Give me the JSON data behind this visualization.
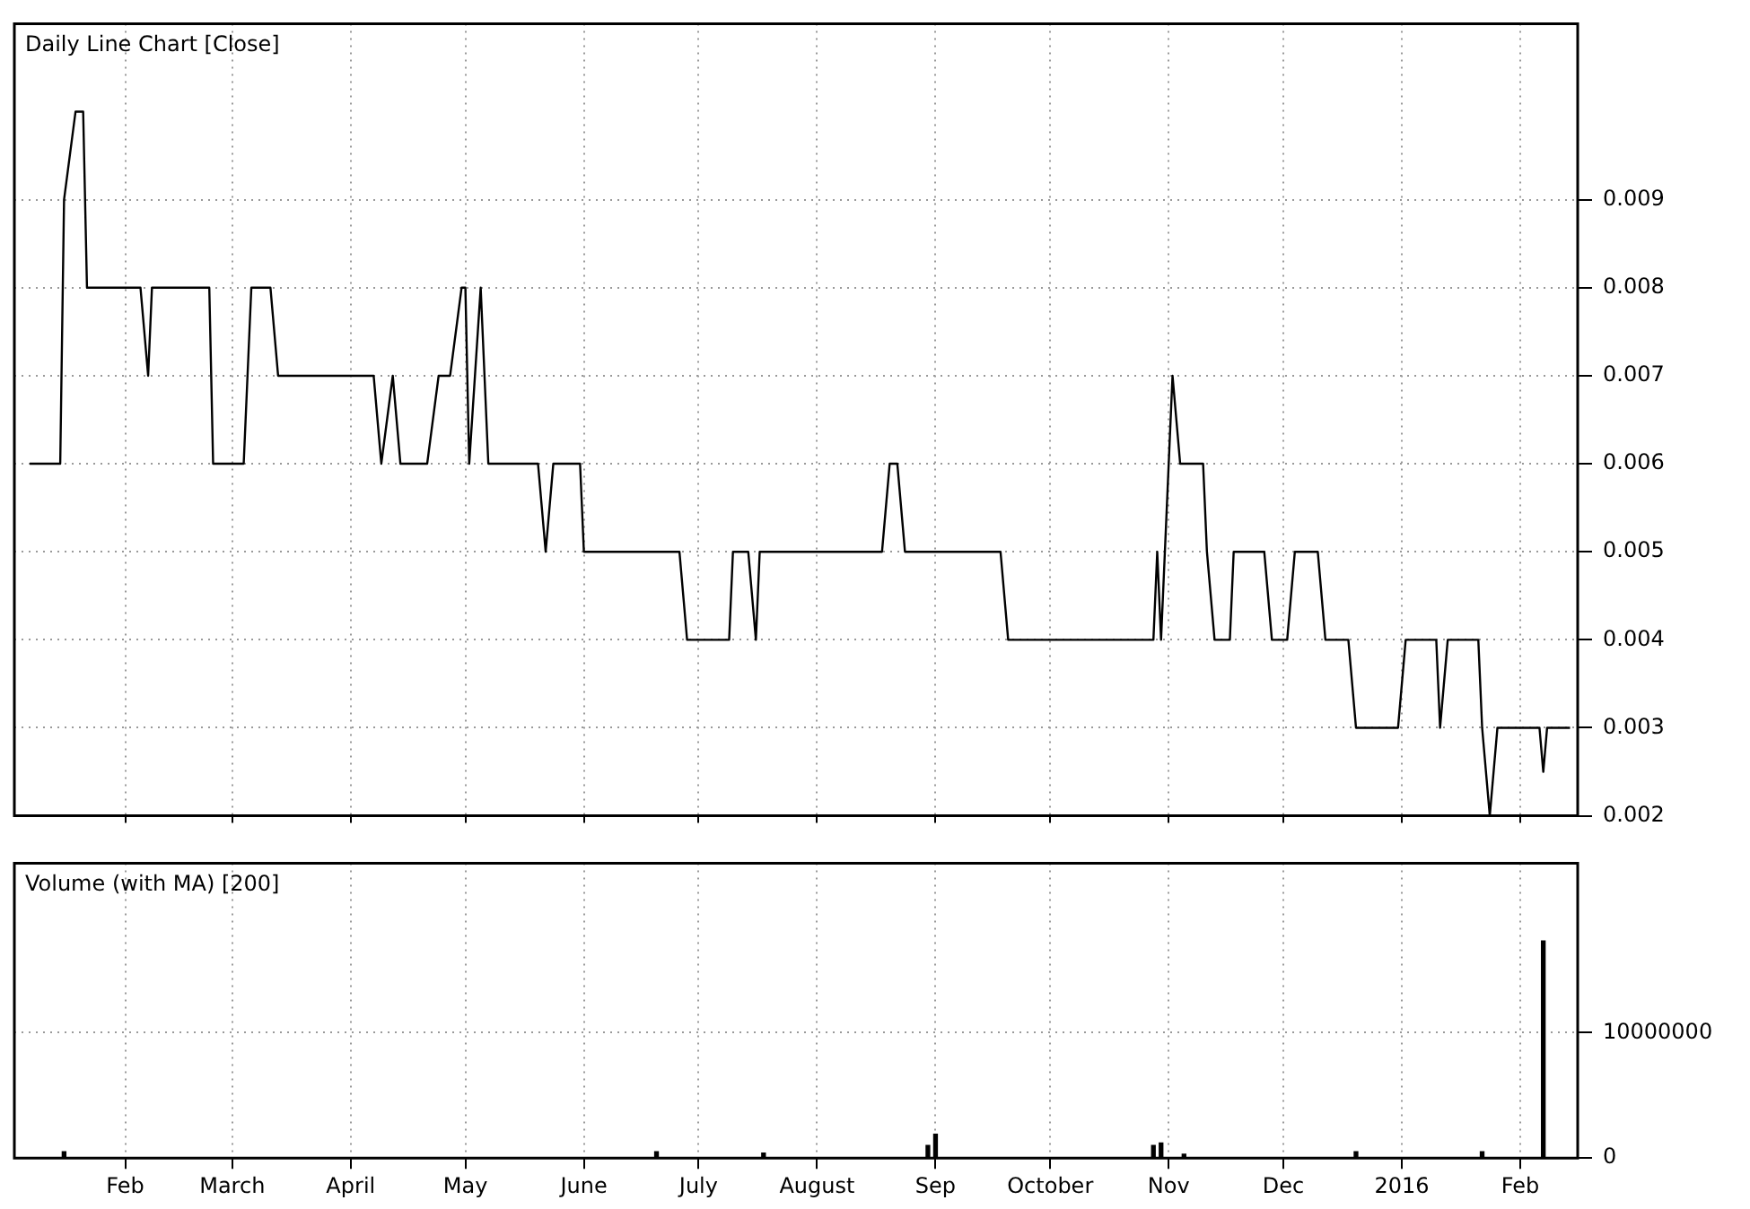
{
  "chart_data": [
    {
      "type": "line",
      "title": "Daily Line Chart [Close]",
      "color": "#000000",
      "x": [
        "2015-01-07",
        "2015-01-15",
        "2015-01-16",
        "2015-01-19",
        "2015-01-21",
        "2015-01-22",
        "2015-02-05",
        "2015-02-07",
        "2015-02-08",
        "2015-02-23",
        "2015-02-24",
        "2015-03-04",
        "2015-03-06",
        "2015-03-11",
        "2015-03-13",
        "2015-04-07",
        "2015-04-09",
        "2015-04-12",
        "2015-04-14",
        "2015-04-21",
        "2015-04-24",
        "2015-04-27",
        "2015-04-30",
        "2015-05-01",
        "2015-05-02",
        "2015-05-05",
        "2015-05-07",
        "2015-05-20",
        "2015-05-22",
        "2015-05-24",
        "2015-05-31",
        "2015-06-01",
        "2015-06-26",
        "2015-06-28",
        "2015-07-09",
        "2015-07-10",
        "2015-07-14",
        "2015-07-16",
        "2015-07-17",
        "2015-08-18",
        "2015-08-20",
        "2015-08-22",
        "2015-08-24",
        "2015-09-18",
        "2015-09-20",
        "2015-10-28",
        "2015-10-29",
        "2015-10-30",
        "2015-10-31",
        "2015-11-02",
        "2015-11-04",
        "2015-11-10",
        "2015-11-11",
        "2015-11-13",
        "2015-11-17",
        "2015-11-18",
        "2015-11-26",
        "2015-11-28",
        "2015-12-02",
        "2015-12-04",
        "2015-12-10",
        "2015-12-12",
        "2015-12-18",
        "2015-12-20",
        "2015-12-31",
        "2016-01-02",
        "2016-01-10",
        "2016-01-11",
        "2016-01-13",
        "2016-01-21",
        "2016-01-22",
        "2016-01-24",
        "2016-01-26",
        "2016-02-06",
        "2016-02-07",
        "2016-02-08",
        "2016-02-14"
      ],
      "values": [
        0.006,
        0.006,
        0.009,
        0.01,
        0.01,
        0.008,
        0.008,
        0.007,
        0.008,
        0.008,
        0.006,
        0.006,
        0.008,
        0.008,
        0.007,
        0.007,
        0.006,
        0.007,
        0.006,
        0.006,
        0.007,
        0.007,
        0.008,
        0.008,
        0.006,
        0.008,
        0.006,
        0.006,
        0.005,
        0.006,
        0.006,
        0.005,
        0.005,
        0.004,
        0.004,
        0.005,
        0.005,
        0.004,
        0.005,
        0.005,
        0.006,
        0.006,
        0.005,
        0.005,
        0.004,
        0.004,
        0.005,
        0.004,
        0.005,
        0.007,
        0.006,
        0.006,
        0.005,
        0.004,
        0.004,
        0.005,
        0.005,
        0.004,
        0.004,
        0.005,
        0.005,
        0.004,
        0.004,
        0.003,
        0.003,
        0.004,
        0.004,
        0.003,
        0.004,
        0.004,
        0.003,
        0.002,
        0.003,
        0.003,
        0.0025,
        0.003,
        0.003
      ],
      "xlim": [
        "2015-01-03",
        "2016-02-16"
      ],
      "xticks": [
        {
          "value": "2015-02-01",
          "label": null
        },
        {
          "value": "2015-03-01",
          "label": null
        },
        {
          "value": "2015-04-01",
          "label": null
        },
        {
          "value": "2015-05-01",
          "label": null
        },
        {
          "value": "2015-06-01",
          "label": null
        },
        {
          "value": "2015-07-01",
          "label": null
        },
        {
          "value": "2015-08-01",
          "label": null
        },
        {
          "value": "2015-09-01",
          "label": null
        },
        {
          "value": "2015-10-01",
          "label": null
        },
        {
          "value": "2015-11-01",
          "label": null
        },
        {
          "value": "2015-12-01",
          "label": null
        },
        {
          "value": "2016-01-01",
          "label": null
        },
        {
          "value": "2016-02-01",
          "label": null
        }
      ],
      "ylim": [
        0.002,
        0.011
      ],
      "yticks": [
        0.002,
        0.003,
        0.004,
        0.005,
        0.006,
        0.007,
        0.008,
        0.009
      ],
      "grid": true,
      "tick_labels": "y"
    },
    {
      "type": "bar",
      "title": "Volume (with MA) [200]",
      "color": "#000000",
      "x": [
        "2015-01-16",
        "2015-06-20",
        "2015-07-18",
        "2015-08-30",
        "2015-09-01",
        "2015-10-28",
        "2015-10-30",
        "2015-11-05",
        "2015-12-20",
        "2016-01-22",
        "2016-02-07"
      ],
      "values": [
        500000,
        500000,
        400000,
        1000000,
        1900000,
        1000000,
        1200000,
        300000,
        500000,
        500000,
        17300000
      ],
      "xlim": [
        "2015-01-03",
        "2016-02-16"
      ],
      "xticks": [
        {
          "value": "2015-02-01",
          "label": "Feb"
        },
        {
          "value": "2015-03-01",
          "label": "March"
        },
        {
          "value": "2015-04-01",
          "label": "April"
        },
        {
          "value": "2015-05-01",
          "label": "May"
        },
        {
          "value": "2015-06-01",
          "label": "June"
        },
        {
          "value": "2015-07-01",
          "label": "July"
        },
        {
          "value": "2015-08-01",
          "label": "August"
        },
        {
          "value": "2015-09-01",
          "label": "Sep"
        },
        {
          "value": "2015-10-01",
          "label": "October"
        },
        {
          "value": "2015-11-01",
          "label": "Nov"
        },
        {
          "value": "2015-12-01",
          "label": "Dec"
        },
        {
          "value": "2016-01-01",
          "label": "2016"
        },
        {
          "value": "2016-02-01",
          "label": "Feb"
        }
      ],
      "ylim": [
        0,
        23500000
      ],
      "yticks": [
        0,
        10000000
      ],
      "grid": true
    }
  ]
}
